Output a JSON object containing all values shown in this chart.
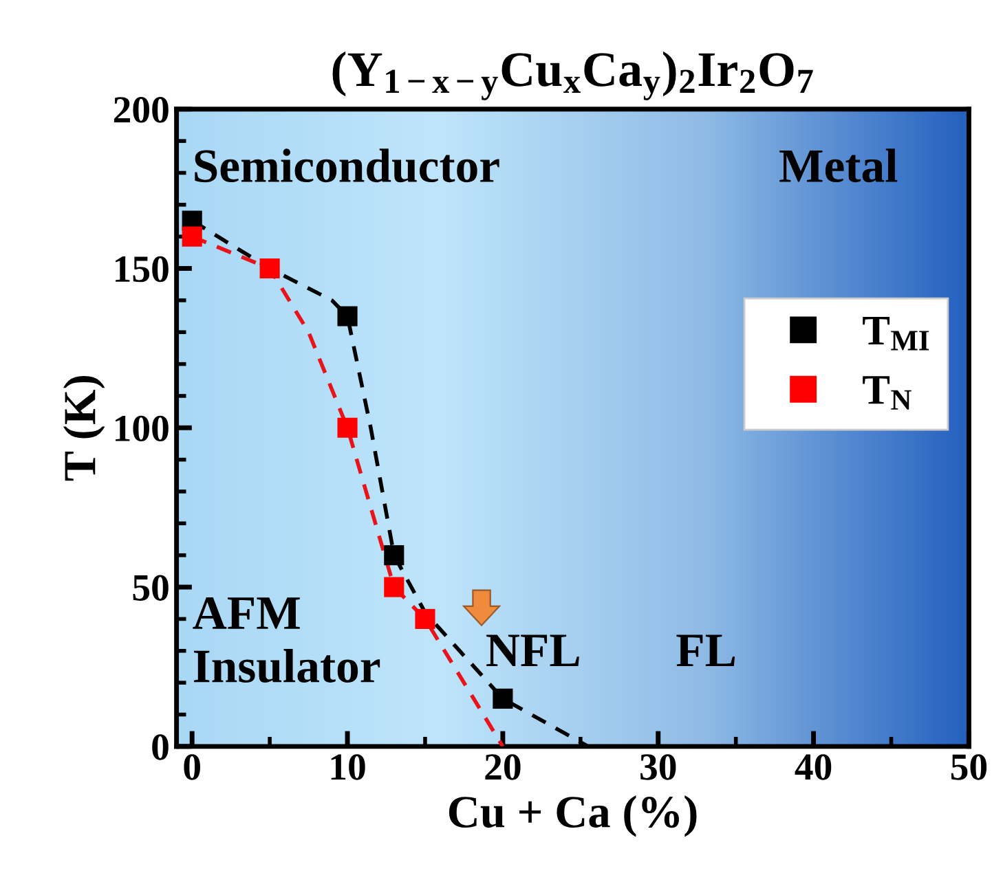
{
  "chart_data": {
    "type": "scatter",
    "title": "(Y$_{1−x−y}$Cu$_{x}$Ca$_{y}$)$_{2}$Ir$_{2}$O$_{7}$",
    "xlabel": "Cu + Ca (%)",
    "ylabel": "T (K)",
    "xlim": [
      -1,
      50
    ],
    "xticks": [
      0,
      10,
      20,
      30,
      40,
      50
    ],
    "ylim": [
      0,
      200
    ],
    "yticks": [
      0,
      50,
      100,
      150,
      200
    ],
    "marker": "square",
    "legend": "right",
    "grid": false,
    "series": [
      {
        "name": "T$_{MI}$",
        "color": "#000000",
        "x": [
          0,
          10,
          13,
          20
        ],
        "values": [
          165,
          135,
          60,
          15
        ]
      },
      {
        "name": "T$_{N}$",
        "color": "#ff0000",
        "x": [
          0,
          5,
          10,
          13,
          15
        ],
        "values": [
          160,
          150,
          100,
          50,
          40
        ]
      },
      {
        "type": "line",
        "line_style": "dashed",
        "marker": "none",
        "color": "#000000",
        "x": [
          0,
          5,
          9,
          10,
          11.5,
          13,
          15,
          20,
          25.5
        ],
        "values": [
          165,
          150,
          140,
          135,
          100,
          60,
          42,
          15,
          0
        ]
      },
      {
        "type": "line",
        "line_style": "dashed",
        "marker": "none",
        "color": "#e8141c",
        "x": [
          0,
          5,
          7.5,
          10,
          11.5,
          13,
          15,
          20
        ],
        "values": [
          160,
          150,
          130,
          100,
          75,
          50,
          40,
          0
        ]
      }
    ],
    "annotations": [
      "Semiconductor",
      "Metal",
      "AFM\nInsulator",
      "NFL",
      "FL"
    ]
  }
}
